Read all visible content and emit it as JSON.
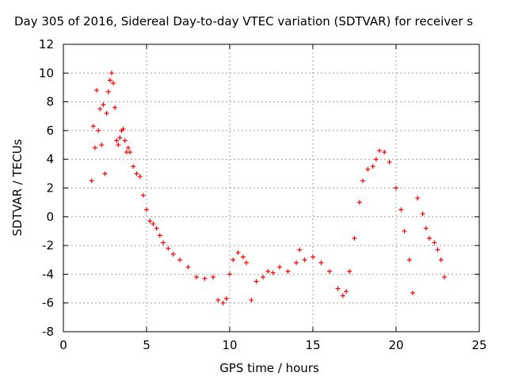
{
  "chart_data": {
    "type": "scatter",
    "title": "Day 305 of 2016, Sidereal Day-to-day VTEC variation (SDTVAR) for receiver s",
    "xlabel": "GPS time / hours",
    "ylabel": "SDTVAR / TECUs",
    "xlim": [
      0,
      25
    ],
    "ylim": [
      -8,
      12
    ],
    "xticks": [
      "0",
      "5",
      "10",
      "15",
      "20",
      "25"
    ],
    "yticks": [
      "-8",
      "-6",
      "-4",
      "-2",
      "0",
      "2",
      "4",
      "6",
      "8",
      "10",
      "12"
    ],
    "grid": true,
    "marker": "+",
    "series_color": "#ff0000",
    "series": [
      {
        "name": "SDTVAR",
        "x": [
          1.7,
          1.8,
          1.9,
          2.0,
          2.1,
          2.2,
          2.3,
          2.4,
          2.5,
          2.6,
          2.7,
          2.8,
          2.9,
          3.0,
          3.1,
          3.2,
          3.3,
          3.4,
          3.5,
          3.6,
          3.7,
          3.8,
          3.9,
          4.0,
          4.2,
          4.4,
          4.6,
          4.8,
          5.0,
          5.2,
          5.4,
          5.6,
          5.8,
          6.0,
          6.3,
          6.6,
          7.0,
          7.5,
          8.0,
          8.5,
          9.0,
          9.3,
          9.6,
          9.8,
          10.0,
          10.2,
          10.5,
          10.8,
          11.0,
          11.3,
          11.6,
          12.0,
          12.3,
          12.6,
          13.0,
          13.5,
          14.0,
          14.2,
          14.5,
          15.0,
          15.5,
          16.0,
          16.5,
          16.8,
          17.0,
          17.2,
          17.5,
          17.8,
          18.0,
          18.3,
          18.6,
          18.8,
          19.0,
          19.3,
          19.6,
          20.0,
          20.3,
          20.5,
          20.8,
          21.0,
          21.3,
          21.6,
          21.8,
          22.0,
          22.3,
          22.5,
          22.7,
          22.9
        ],
        "y": [
          2.5,
          6.3,
          4.8,
          8.8,
          6.0,
          7.5,
          5.0,
          7.8,
          3.0,
          7.2,
          8.7,
          9.5,
          10.0,
          9.3,
          7.6,
          5.3,
          5.0,
          5.5,
          6.0,
          6.1,
          5.3,
          4.5,
          4.8,
          4.5,
          3.5,
          3.0,
          2.8,
          1.5,
          0.5,
          -0.3,
          -0.5,
          -0.8,
          -1.3,
          -1.8,
          -2.2,
          -2.6,
          -3.0,
          -3.5,
          -4.2,
          -4.3,
          -4.2,
          -5.8,
          -6.0,
          -5.7,
          -4.0,
          -3.0,
          -2.5,
          -2.8,
          -3.2,
          -5.8,
          -4.5,
          -4.2,
          -3.8,
          -3.9,
          -3.5,
          -3.8,
          -3.2,
          -2.3,
          -3.0,
          -2.8,
          -3.2,
          -3.8,
          -5.0,
          -5.5,
          -5.2,
          -3.8,
          -1.5,
          1.0,
          2.5,
          3.3,
          3.5,
          4.0,
          4.6,
          4.5,
          3.8,
          2.0,
          0.5,
          -1.0,
          -3.0,
          -5.3,
          1.3,
          0.2,
          -0.8,
          -1.5,
          -1.8,
          -2.3,
          -3.0,
          -4.2
        ]
      }
    ]
  }
}
